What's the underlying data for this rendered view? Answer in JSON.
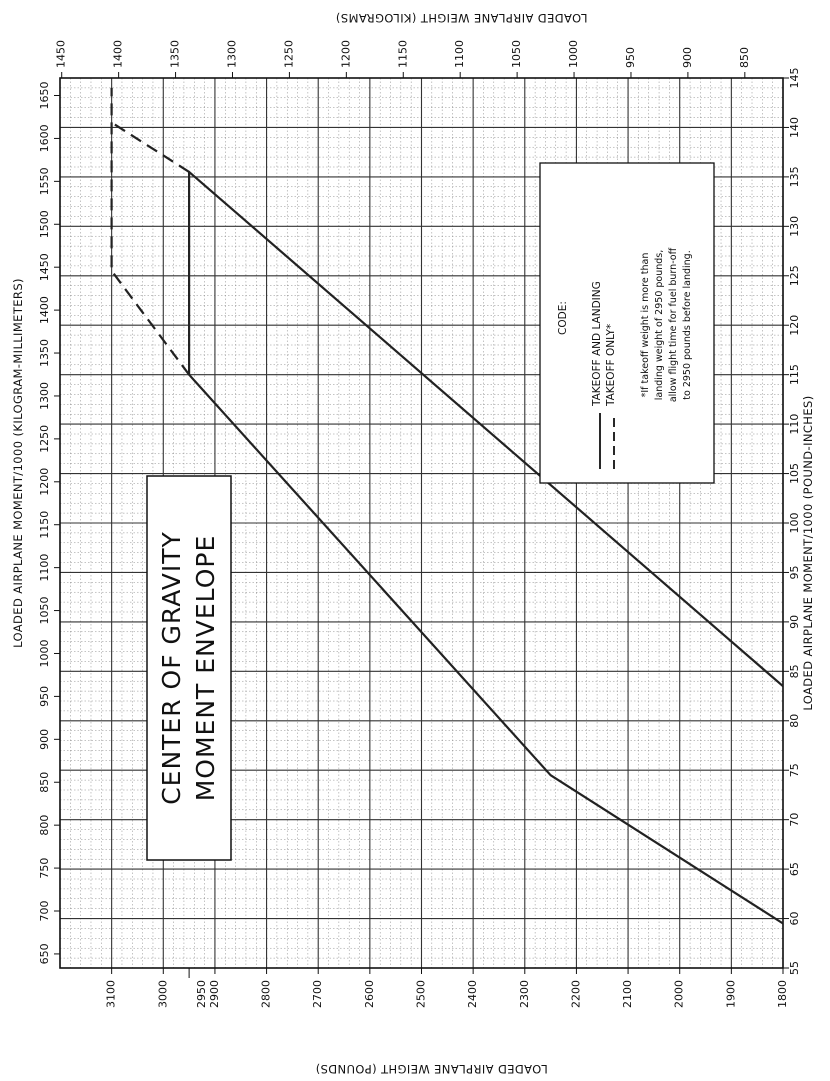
{
  "chart_data": {
    "type": "line",
    "title": [
      "CENTER OF GRAVITY",
      "MOMENT ENVELOPE"
    ],
    "x_axis": {
      "label": "LOADED AIRPLANE MOMENT/1000 (POUND-INCHES)",
      "range": [
        55,
        145
      ],
      "ticks": [
        55,
        60,
        65,
        70,
        75,
        80,
        85,
        90,
        95,
        100,
        105,
        110,
        115,
        120,
        125,
        130,
        135,
        140,
        145
      ]
    },
    "y_axis": {
      "label": "LOADED AIRPLANE WEIGHT (POUNDS)",
      "range": [
        1800,
        3200
      ],
      "ticks": [
        1800,
        1900,
        2000,
        2100,
        2200,
        2300,
        2400,
        2500,
        2600,
        2700,
        2800,
        2900,
        3000,
        3100
      ],
      "extra_tick": 2950,
      "extra_tick_label": "2950"
    },
    "secondary_x_axis": {
      "label": "LOADED AIRPLANE MOMENT/1000 (KILOGRAM-MILLIMETERS)",
      "ticks": [
        650,
        700,
        750,
        800,
        850,
        900,
        950,
        1000,
        1050,
        1100,
        1150,
        1200,
        1250,
        1300,
        1350,
        1400,
        1450,
        1500,
        1550,
        1600,
        1650
      ]
    },
    "secondary_y_axis": {
      "label": "LOADED AIRPLANE WEIGHT (KILOGRAMS)",
      "ticks": [
        850,
        900,
        950,
        1000,
        1050,
        1100,
        1150,
        1200,
        1250,
        1300,
        1350,
        1400,
        1450
      ]
    },
    "series": [
      {
        "name": "TAKEOFF AND LANDING",
        "style": "solid",
        "segments": [
          [
            [
              59.5,
              1800
            ],
            [
              74.5,
              2250
            ],
            [
              115,
              2950
            ],
            [
              135.5,
              2950
            ],
            [
              83.5,
              1800
            ]
          ]
        ]
      },
      {
        "name": "TAKEOFF ONLY*",
        "style": "dashed",
        "segments": [
          [
            [
              115,
              2950
            ],
            [
              125.5,
              3100
            ],
            [
              144,
              3100
            ]
          ],
          [
            [
              135.5,
              2950
            ],
            [
              140.5,
              3100
            ]
          ]
        ]
      }
    ],
    "legend": {
      "heading": "CODE:",
      "items": [
        "TAKEOFF AND LANDING",
        "TAKEOFF ONLY*"
      ],
      "note": [
        "*If takeoff weight is more than",
        "landing weight of 2950 pounds,",
        "allow flight time for fuel burn-off",
        "to 2950 pounds before landing."
      ]
    },
    "grid": true,
    "orientation": "rotated-90-clockwise"
  }
}
